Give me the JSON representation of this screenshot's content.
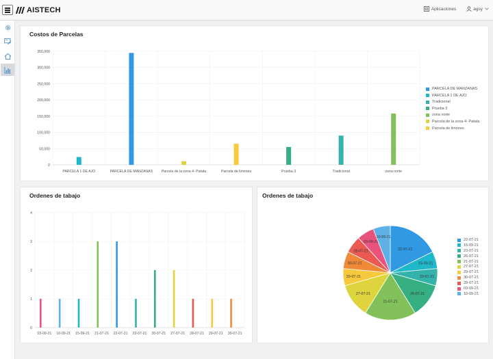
{
  "header": {
    "brand": "AISTECH",
    "apps_label": "Aplicaciones",
    "user_label": "agsy"
  },
  "colors": {
    "blue": "#2f9ae3",
    "sky": "#5db1e6",
    "cyan": "#1fb7ca",
    "teal": "#34b3ad",
    "green": "#36b083",
    "lime": "#82c15a",
    "yellow": "#ded53e",
    "amber": "#f7c93c",
    "orange": "#f08a38",
    "red": "#ea5a53",
    "pink": "#e7537c"
  },
  "cards": {
    "costos": {
      "title": "Costos de Parcelas"
    },
    "ordenes_bar": {
      "title": "Ordenes de tabajo"
    },
    "ordenes_pie": {
      "title": "Ordenes de tabajo"
    }
  },
  "chart_data": [
    {
      "type": "bar",
      "title": "Costos de Parcelas",
      "ylim": [
        0,
        350000
      ],
      "yticks": [
        "0",
        "50,000",
        "100,000",
        "150,000",
        "200,000",
        "250,000",
        "300,000",
        "350,000"
      ],
      "ytick_values": [
        0,
        50000,
        100000,
        150000,
        200000,
        250000,
        300000,
        350000
      ],
      "categories": [
        "PARCELA 1 DE AJO",
        "PARCELA DE MANZANAS",
        "Parcela de la zona 4- Patata",
        "Parcela de limones",
        "Prueba 3",
        "Tradicional",
        "zona norte"
      ],
      "series": [
        {
          "name": "PARCELA DE MANZANAS",
          "color": "#2f9ae3",
          "values": [
            null,
            345000,
            null,
            null,
            null,
            null,
            null
          ]
        },
        {
          "name": "PARCELA 1 DE AJO",
          "color": "#1fb7ca",
          "values": [
            24000,
            null,
            null,
            null,
            null,
            null,
            null
          ]
        },
        {
          "name": "Tradicional",
          "color": "#34b3ad",
          "values": [
            null,
            null,
            null,
            null,
            null,
            90000,
            null
          ]
        },
        {
          "name": "Prueba 3",
          "color": "#36b083",
          "values": [
            null,
            null,
            null,
            null,
            55000,
            null,
            null
          ]
        },
        {
          "name": "zona norte",
          "color": "#82c15a",
          "values": [
            null,
            null,
            null,
            null,
            null,
            null,
            158000
          ]
        },
        {
          "name": "Parcela de la zona 4- Patata",
          "color": "#ded53e",
          "values": [
            null,
            null,
            11000,
            null,
            null,
            null,
            null
          ]
        },
        {
          "name": "Parcela de limones",
          "color": "#f7c93c",
          "values": [
            null,
            null,
            null,
            65000,
            null,
            null,
            null
          ]
        }
      ],
      "legend": "right"
    },
    {
      "type": "bar",
      "title": "Ordenes de tabajo",
      "ylim": [
        0,
        4
      ],
      "yticks": [
        "0",
        "1",
        "2",
        "3",
        "4"
      ],
      "ytick_values": [
        0,
        1,
        2,
        3,
        4
      ],
      "categories": [
        "03-09-21",
        "10-09-21",
        "15-09-21",
        "21-07-21",
        "22-07-21",
        "23-07-21",
        "26-07-21",
        "27-07-21",
        "28-07-21",
        "29-07-21",
        "30-07-21"
      ],
      "series": [
        {
          "name": "03-09-21",
          "color": "#e7537c",
          "values": [
            1,
            null,
            null,
            null,
            null,
            null,
            null,
            null,
            null,
            null,
            null
          ]
        },
        {
          "name": "10-09-21",
          "color": "#5db1e6",
          "values": [
            null,
            1,
            null,
            null,
            null,
            null,
            null,
            null,
            null,
            null,
            null
          ]
        },
        {
          "name": "15-09-21",
          "color": "#1fb7ca",
          "values": [
            null,
            null,
            1,
            null,
            null,
            null,
            null,
            null,
            null,
            null,
            null
          ]
        },
        {
          "name": "21-07-21",
          "color": "#82c15a",
          "values": [
            null,
            null,
            null,
            3,
            null,
            null,
            null,
            null,
            null,
            null,
            null
          ]
        },
        {
          "name": "22-07-21",
          "color": "#2f9ae3",
          "values": [
            null,
            null,
            null,
            null,
            3,
            null,
            null,
            null,
            null,
            null,
            null
          ]
        },
        {
          "name": "23-07-21",
          "color": "#34b3ad",
          "values": [
            null,
            null,
            null,
            null,
            null,
            1,
            null,
            null,
            null,
            null,
            null
          ]
        },
        {
          "name": "26-07-21",
          "color": "#36b083",
          "values": [
            null,
            null,
            null,
            null,
            null,
            null,
            2,
            null,
            null,
            null,
            null
          ]
        },
        {
          "name": "27-07-21",
          "color": "#ded53e",
          "values": [
            null,
            null,
            null,
            null,
            null,
            null,
            null,
            2,
            null,
            null,
            null
          ]
        },
        {
          "name": "28-07-21",
          "color": "#ea5a53",
          "values": [
            null,
            null,
            null,
            null,
            null,
            null,
            null,
            null,
            1,
            null,
            null
          ]
        },
        {
          "name": "29-07-21",
          "color": "#f7c93c",
          "values": [
            null,
            null,
            null,
            null,
            null,
            null,
            null,
            null,
            null,
            1,
            null
          ]
        },
        {
          "name": "30-07-21",
          "color": "#f08a38",
          "values": [
            null,
            null,
            null,
            null,
            null,
            null,
            null,
            null,
            null,
            null,
            1
          ]
        }
      ]
    },
    {
      "type": "pie",
      "title": "Ordenes de tabajo",
      "slices": [
        {
          "label": "22-07-21",
          "value": 3,
          "color": "#2f9ae3"
        },
        {
          "label": "15-09-21",
          "value": 1,
          "color": "#1fb7ca"
        },
        {
          "label": "23-07-21",
          "value": 1,
          "color": "#34b3ad"
        },
        {
          "label": "26-07-21",
          "value": 2,
          "color": "#36b083"
        },
        {
          "label": "21-07-21",
          "value": 3,
          "color": "#82c15a"
        },
        {
          "label": "27-07-21",
          "value": 2,
          "color": "#ded53e"
        },
        {
          "label": "29-07-21",
          "value": 1,
          "color": "#f7c93c"
        },
        {
          "label": "30-07-21",
          "value": 1,
          "color": "#f08a38"
        },
        {
          "label": "28-07-21",
          "value": 1,
          "color": "#ea5a53"
        },
        {
          "label": "03-09-21",
          "value": 1,
          "color": "#e7537c"
        },
        {
          "label": "10-09-21",
          "value": 1,
          "color": "#5db1e6"
        }
      ],
      "legend": "right"
    }
  ]
}
